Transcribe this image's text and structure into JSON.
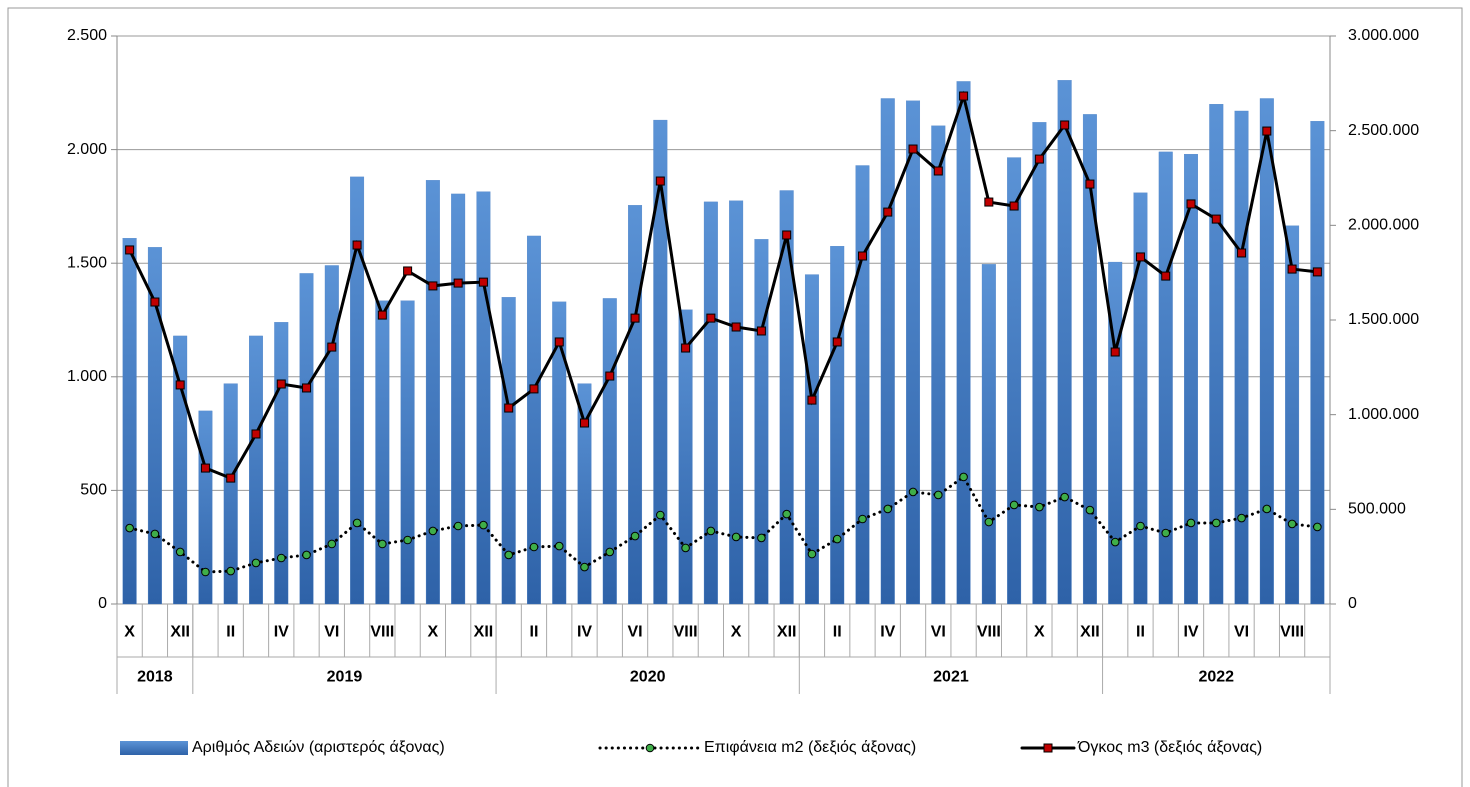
{
  "chart_data": {
    "type": "combo",
    "categories": [
      "X",
      null,
      "XII",
      null,
      "II",
      null,
      "IV",
      null,
      "VI",
      null,
      "VIII",
      null,
      "X",
      null,
      "XII",
      null,
      "II",
      null,
      "IV",
      null,
      "VI",
      null,
      "VIII",
      null,
      "X",
      null,
      "XII",
      null,
      "II",
      null,
      "IV",
      null,
      "VI",
      null,
      "VIII",
      null,
      "X",
      null,
      "XII",
      null,
      "II",
      null,
      "IV",
      null,
      "VI",
      null,
      "VIII",
      null
    ],
    "years": [
      {
        "label": "2018",
        "span": 3
      },
      {
        "label": "2019",
        "span": 12
      },
      {
        "label": "2020",
        "span": 12
      },
      {
        "label": "2021",
        "span": 12
      },
      {
        "label": "2022",
        "span": 9
      }
    ],
    "series": [
      {
        "name": "Αριθμός Αδειών (αριστερός άξονας)",
        "type": "bar",
        "axis": "y",
        "color": "#4a7fc4",
        "values": [
          1610,
          1570,
          1180,
          850,
          970,
          1180,
          1240,
          1455,
          1490,
          1880,
          1335,
          1335,
          1865,
          1805,
          1815,
          1350,
          1620,
          1330,
          970,
          1345,
          1755,
          2130,
          1295,
          1770,
          1775,
          1605,
          1820,
          1450,
          1575,
          1930,
          2225,
          2215,
          2105,
          2300,
          1495,
          1965,
          2120,
          2305,
          2155,
          1505,
          1810,
          1990,
          1980,
          2200,
          2170,
          2225,
          1665,
          2125
        ]
      },
      {
        "name": "Επιφάνεια m2 (δεξιός άξονας)",
        "type": "line",
        "axis": "y2",
        "color": "#000000",
        "marker_color": "#3fae49",
        "marker": "circle",
        "line_style": "dotted",
        "values": [
          401000,
          370000,
          275000,
          169000,
          174000,
          217000,
          243000,
          259000,
          317000,
          428000,
          317000,
          338000,
          386000,
          412000,
          417000,
          259000,
          301000,
          306000,
          195000,
          275000,
          359000,
          470000,
          296000,
          386000,
          354000,
          349000,
          475000,
          264000,
          343000,
          449000,
          502000,
          592000,
          576000,
          671000,
          433000,
          523000,
          512000,
          565000,
          496000,
          327000,
          412000,
          375000,
          428000,
          428000,
          454000,
          502000,
          423000,
          407000
        ]
      },
      {
        "name": "Όγκος m3 (δεξιός άξονας)",
        "type": "line",
        "axis": "y2",
        "color": "#000000",
        "marker_color": "#c00000",
        "marker": "square",
        "line_style": "solid",
        "values": [
          1870000,
          1595000,
          1157000,
          718000,
          665000,
          898000,
          1162000,
          1141000,
          1357000,
          1896000,
          1526000,
          1759000,
          1680000,
          1695000,
          1700000,
          1035000,
          1136000,
          1384000,
          956000,
          1204000,
          1510000,
          2234000,
          1352000,
          1510000,
          1463000,
          1442000,
          1949000,
          1077000,
          1384000,
          1838000,
          2070000,
          2403000,
          2287000,
          2683000,
          2123000,
          2102000,
          2350000,
          2530000,
          2218000,
          1331000,
          1833000,
          1732000,
          2113000,
          2033000,
          1854000,
          2498000,
          1769000,
          1754000
        ]
      }
    ],
    "ylim": [
      0,
      2500
    ],
    "yticks": [
      0,
      {
        "value": 500,
        "label": "500"
      },
      {
        "value": 1000,
        "label": "1.000"
      },
      {
        "value": 1500,
        "label": "1.500"
      },
      {
        "value": 2000,
        "label": "2.000"
      },
      {
        "value": 2500,
        "label": "2.500"
      }
    ],
    "y2lim": [
      0,
      3000000
    ],
    "y2ticks": [
      0,
      {
        "value": 500000,
        "label": "500.000"
      },
      {
        "value": 1000000,
        "label": "1.000.000"
      },
      {
        "value": 1500000,
        "label": "1.500.000"
      },
      {
        "value": 2000000,
        "label": "2.000.000"
      },
      {
        "value": 2500000,
        "label": "2.500.000"
      },
      {
        "value": 3000000,
        "label": "3.000.000"
      }
    ],
    "grid": true,
    "legend": "bottom"
  }
}
